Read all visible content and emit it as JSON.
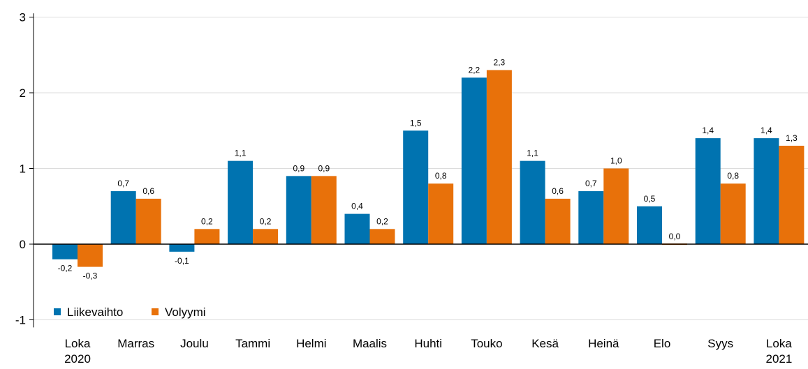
{
  "chart_data": {
    "type": "bar",
    "categories": [
      [
        "Loka",
        "2020"
      ],
      [
        "Marras"
      ],
      [
        "Joulu"
      ],
      [
        "Tammi"
      ],
      [
        "Helmi"
      ],
      [
        "Maalis"
      ],
      [
        "Huhti"
      ],
      [
        "Touko"
      ],
      [
        "Kesä"
      ],
      [
        "Heinä"
      ],
      [
        "Elo"
      ],
      [
        "Syys"
      ],
      [
        "Loka",
        "2021"
      ]
    ],
    "series": [
      {
        "name": "Liikevaihto",
        "color": "#0073b0",
        "values": [
          -0.2,
          0.7,
          -0.1,
          1.1,
          0.9,
          0.4,
          1.5,
          2.2,
          1.1,
          0.7,
          0.5,
          1.4,
          1.4
        ],
        "labels": [
          "-0,2",
          "0,7",
          "-0,1",
          "1,1",
          "0,9",
          "0,4",
          "1,5",
          "2,2",
          "1,1",
          "0,7",
          "0,5",
          "1,4",
          "1,4"
        ]
      },
      {
        "name": "Volyymi",
        "color": "#e8710a",
        "values": [
          -0.3,
          0.6,
          0.2,
          0.2,
          0.9,
          0.2,
          0.8,
          2.3,
          0.6,
          1.0,
          0.0,
          0.8,
          1.3
        ],
        "labels": [
          "-0,3",
          "0,6",
          "0,2",
          "0,2",
          "0,9",
          "0,2",
          "0,8",
          "2,3",
          "0,6",
          "1,0",
          "0,0",
          "0,8",
          "1,3"
        ]
      }
    ],
    "yticks": [
      {
        "value": 3,
        "label": "3"
      },
      {
        "value": 2,
        "label": "2"
      },
      {
        "value": 1,
        "label": "1"
      },
      {
        "value": 0,
        "label": "0"
      },
      {
        "value": -1,
        "label": "-1"
      }
    ],
    "ylim": [
      -1.1,
      3.1
    ],
    "grid": true,
    "legend_position": "bottom-left",
    "title": "",
    "xlabel": "",
    "ylabel": ""
  }
}
